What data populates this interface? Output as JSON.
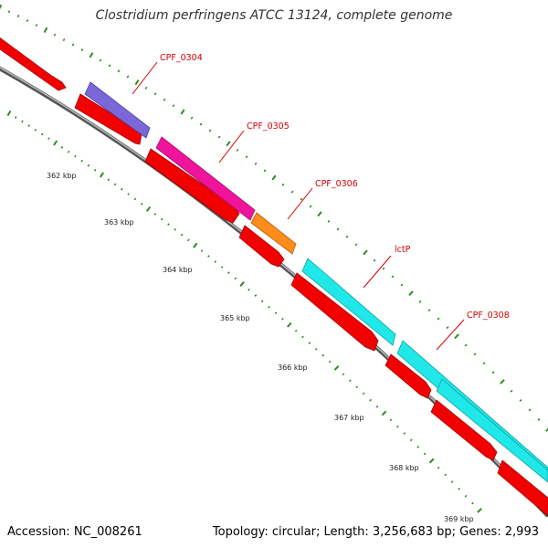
{
  "header": {
    "title": "Clostridium perfringens ATCC 13124, complete genome"
  },
  "footer": {
    "accession": "Accession: NC_008261",
    "stats": "Topology: circular; Length: 3,256,683 bp; Genes: 2,993"
  },
  "genome_map": {
    "accession": "NC_008261",
    "topology": "circular",
    "length_bp": 3256683,
    "gene_count": 2993,
    "ruler": {
      "tick_labels": [
        "362 kbp",
        "363 kbp",
        "364 kbp",
        "365 kbp",
        "366 kbp",
        "367 kbp",
        "368 kbp",
        "369 kbp"
      ],
      "colors": {
        "major_tick": "#2e8b22",
        "minor_tick": "#2e8b22"
      }
    },
    "genes": [
      {
        "label": "CPF_0304",
        "color": "#7b68d8"
      },
      {
        "label": "CPF_0305",
        "color": "#f0149c"
      },
      {
        "label": "CPF_0306",
        "color": "#ff8c1a"
      },
      {
        "label": "lctP",
        "color": "#20e8e8"
      },
      {
        "label": "CPF_0308",
        "color": "#20e8e8"
      }
    ],
    "cds_color": "#f20000",
    "backbone_color": "#8a8a8a",
    "label_color": "#d40000"
  }
}
